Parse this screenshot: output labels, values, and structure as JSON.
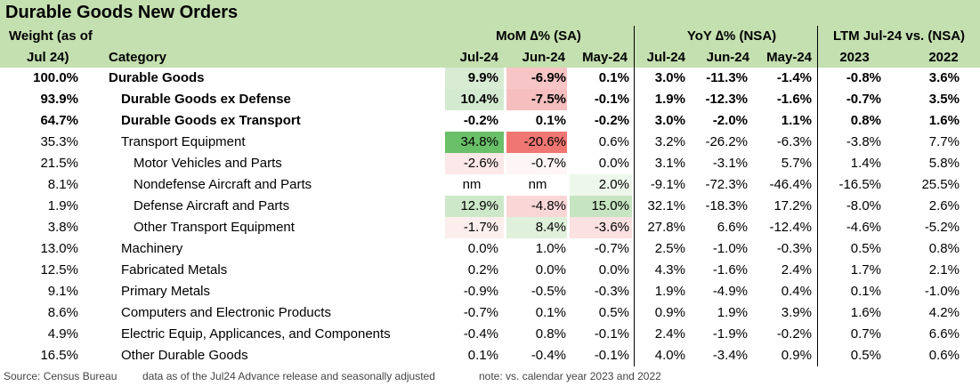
{
  "title": "Durable Goods New Orders",
  "headers": {
    "weight_line1": "Weight (as of",
    "weight_line2": "Jul 24)",
    "category": "Category",
    "mom_group": "MoM ∆% (SA)",
    "yoy_group": "YoY ∆% (NSA)",
    "ltm_group": "LTM Jul-24 vs. (NSA)",
    "mom_cols": [
      "Jul-24",
      "Jun-24",
      "May-24"
    ],
    "yoy_cols": [
      "Jul-24",
      "Jun-24",
      "May-24"
    ],
    "ltm_cols": [
      "2023",
      "2022"
    ]
  },
  "rows": [
    {
      "weight": "100.0%",
      "category": "Durable Goods",
      "indent": 0,
      "bold": true,
      "mom": [
        "9.9%",
        "-6.9%",
        "0.1%"
      ],
      "mom_bg": [
        "#d8ecd3",
        "#f7c5c5",
        ""
      ],
      "yoy": [
        "3.0%",
        "-11.3%",
        "-1.4%"
      ],
      "ltm": [
        "-0.8%",
        "3.6%"
      ]
    },
    {
      "weight": "93.9%",
      "category": "Durable Goods ex Defense",
      "indent": 1,
      "bold": true,
      "mom": [
        "10.4%",
        "-7.5%",
        "-0.1%"
      ],
      "mom_bg": [
        "#d3ead0",
        "#f6bebe",
        ""
      ],
      "yoy": [
        "1.9%",
        "-12.3%",
        "-1.6%"
      ],
      "ltm": [
        "-0.7%",
        "3.5%"
      ]
    },
    {
      "weight": "64.7%",
      "category": "Durable Goods ex Transport",
      "indent": 1,
      "bold": true,
      "mom": [
        "-0.2%",
        "0.1%",
        "-0.2%"
      ],
      "mom_bg": [
        "",
        "",
        ""
      ],
      "yoy": [
        "3.0%",
        "-2.0%",
        "1.1%"
      ],
      "ltm": [
        "0.8%",
        "1.6%"
      ]
    },
    {
      "weight": "35.3%",
      "category": "Transport Equipment",
      "indent": 1,
      "bold": false,
      "mom": [
        "34.8%",
        "-20.6%",
        "0.6%"
      ],
      "mom_bg": [
        "#6abf69",
        "#f07673",
        ""
      ],
      "yoy": [
        "3.2%",
        "-26.2%",
        "-6.3%"
      ],
      "ltm": [
        "-3.8%",
        "7.7%"
      ]
    },
    {
      "weight": "21.5%",
      "category": "Motor Vehicles and Parts",
      "indent": 2,
      "bold": false,
      "mom": [
        "-2.6%",
        "-0.7%",
        "0.0%"
      ],
      "mom_bg": [
        "#fce8e8",
        "#fef6f6",
        ""
      ],
      "yoy": [
        "3.1%",
        "-3.1%",
        "5.7%"
      ],
      "ltm": [
        "1.4%",
        "5.8%"
      ]
    },
    {
      "weight": "8.1%",
      "category": "Nondefense Aircraft and Parts",
      "indent": 2,
      "bold": false,
      "mom": [
        "nm",
        "nm",
        "2.0%"
      ],
      "mom_bg": [
        "",
        "",
        "#eef7ec"
      ],
      "yoy": [
        "-9.1%",
        "-72.3%",
        "-46.4%"
      ],
      "ltm": [
        "-16.5%",
        "25.5%"
      ]
    },
    {
      "weight": "1.9%",
      "category": "Defense Aircraft and Parts",
      "indent": 2,
      "bold": false,
      "mom": [
        "12.9%",
        "-4.8%",
        "15.0%"
      ],
      "mom_bg": [
        "#cde8c8",
        "#fad7d7",
        "#c6e4c1"
      ],
      "yoy": [
        "32.1%",
        "-18.3%",
        "17.2%"
      ],
      "ltm": [
        "-8.0%",
        "2.6%"
      ]
    },
    {
      "weight": "3.8%",
      "category": "Other Transport Equipment",
      "indent": 2,
      "bold": false,
      "mom": [
        "-1.7%",
        "8.4%",
        "-3.6%"
      ],
      "mom_bg": [
        "#fdeeee",
        "#dff0db",
        "#fbe1e1"
      ],
      "yoy": [
        "27.8%",
        "6.6%",
        "-12.4%"
      ],
      "ltm": [
        "-4.6%",
        "-5.2%"
      ]
    },
    {
      "weight": "13.0%",
      "category": "Machinery",
      "indent": 1,
      "bold": false,
      "mom": [
        "0.0%",
        "1.0%",
        "-0.7%"
      ],
      "mom_bg": [
        "",
        "",
        ""
      ],
      "yoy": [
        "2.5%",
        "-1.0%",
        "-0.3%"
      ],
      "ltm": [
        "0.5%",
        "0.8%"
      ]
    },
    {
      "weight": "12.5%",
      "category": "Fabricated Metals",
      "indent": 1,
      "bold": false,
      "mom": [
        "0.2%",
        "0.0%",
        "0.0%"
      ],
      "mom_bg": [
        "",
        "",
        ""
      ],
      "yoy": [
        "4.3%",
        "-1.6%",
        "2.4%"
      ],
      "ltm": [
        "1.7%",
        "2.1%"
      ]
    },
    {
      "weight": "9.1%",
      "category": "Primary Metals",
      "indent": 1,
      "bold": false,
      "mom": [
        "-0.9%",
        "-0.5%",
        "-0.3%"
      ],
      "mom_bg": [
        "",
        "",
        ""
      ],
      "yoy": [
        "1.9%",
        "-4.9%",
        "0.4%"
      ],
      "ltm": [
        "0.1%",
        "-1.0%"
      ]
    },
    {
      "weight": "8.6%",
      "category": "Computers and Electronic Products",
      "indent": 1,
      "bold": false,
      "mom": [
        "-0.7%",
        "0.1%",
        "0.5%"
      ],
      "mom_bg": [
        "",
        "",
        ""
      ],
      "yoy": [
        "0.9%",
        "1.9%",
        "3.9%"
      ],
      "ltm": [
        "1.6%",
        "4.2%"
      ]
    },
    {
      "weight": "4.9%",
      "category": "Electric Equip, Applicances, and Components",
      "indent": 1,
      "bold": false,
      "mom": [
        "-0.4%",
        "0.8%",
        "-0.1%"
      ],
      "mom_bg": [
        "",
        "",
        ""
      ],
      "yoy": [
        "2.4%",
        "-1.9%",
        "-0.2%"
      ],
      "ltm": [
        "0.7%",
        "6.6%"
      ]
    },
    {
      "weight": "16.5%",
      "category": "Other Durable Goods",
      "indent": 1,
      "bold": false,
      "mom": [
        "0.1%",
        "-0.4%",
        "-0.1%"
      ],
      "mom_bg": [
        "",
        "",
        ""
      ],
      "yoy": [
        "4.0%",
        "-3.4%",
        "0.9%"
      ],
      "ltm": [
        "0.5%",
        "0.6%"
      ]
    }
  ],
  "footer": {
    "source": "Source: Census Bureau",
    "note1": "data as of the Jul24 Advance release and seasonally adjusted",
    "note2": "note: vs. calendar year 2023 and 2022"
  }
}
